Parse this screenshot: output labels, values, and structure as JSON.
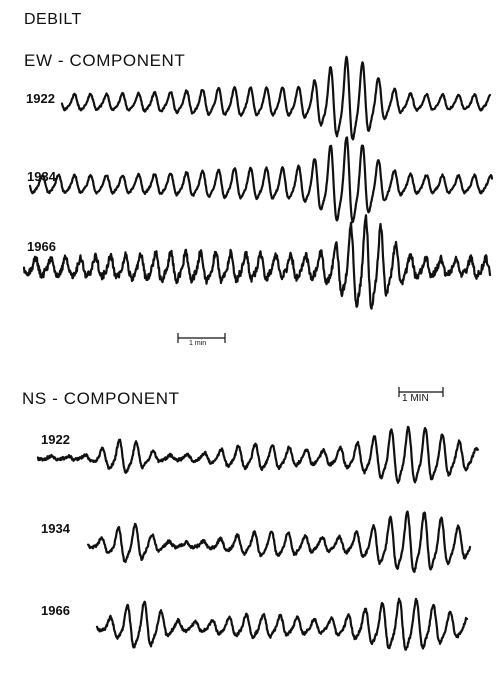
{
  "figure": {
    "station": "DEBILT",
    "colors": {
      "ink": "#111111",
      "paper": "#ffffff"
    }
  },
  "ew_component": {
    "title": "EW - COMPONENT",
    "scale_label": "1 min",
    "traces": [
      {
        "year": "1922"
      },
      {
        "year": "1934"
      },
      {
        "year": "1966"
      }
    ]
  },
  "ns_component": {
    "title": "NS - COMPONENT",
    "scale_label": "1 MIN",
    "traces": [
      {
        "year": "1922"
      },
      {
        "year": "1934"
      },
      {
        "year": "1966"
      }
    ]
  }
}
